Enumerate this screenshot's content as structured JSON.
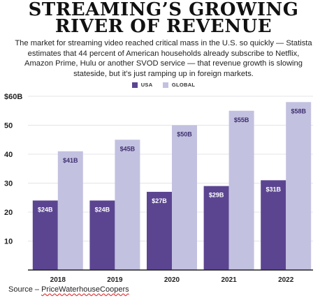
{
  "header": {
    "title_line1": "STREAMING’S GROWING",
    "title_line2": "RIVER OF REVENUE",
    "subtitle": "The market for streaming video reached critical mass in the U.S. so quickly — Statista estimates that 44 percent of American households already subscribe to Netflix, Amazon Prime, Hulu or another SVOD service — that revenue growth is slowing stateside, but it’s just ramping up in foreign markets."
  },
  "legend": [
    {
      "label": "USA",
      "color": "#5b4591"
    },
    {
      "label": "GLOBAL",
      "color": "#c3c1e0"
    }
  ],
  "chart_data": {
    "type": "bar",
    "categories": [
      "2018",
      "2019",
      "2020",
      "2021",
      "2022"
    ],
    "series": [
      {
        "name": "USA",
        "values": [
          24,
          24,
          27,
          29,
          31
        ],
        "labels": [
          "$24B",
          "$24B",
          "$27B",
          "$29B",
          "$31B"
        ],
        "color": "#5b4591"
      },
      {
        "name": "GLOBAL",
        "values": [
          41,
          45,
          50,
          55,
          58
        ],
        "labels": [
          "$41B",
          "$45B",
          "$50B",
          "$55B",
          "$58B"
        ],
        "color": "#c3c1e0"
      }
    ],
    "yticks": [
      {
        "value": 10,
        "label": "10"
      },
      {
        "value": 20,
        "label": "20"
      },
      {
        "value": 30,
        "label": "30"
      },
      {
        "value": 40,
        "label": "40"
      },
      {
        "value": 50,
        "label": "50"
      },
      {
        "value": 60,
        "label": "$60B"
      }
    ],
    "ylim": [
      0,
      60
    ],
    "grid": true,
    "legend_position": "top-center"
  },
  "source": {
    "prefix": "Source – ",
    "name": "PriceWaterhouseCoopers"
  }
}
